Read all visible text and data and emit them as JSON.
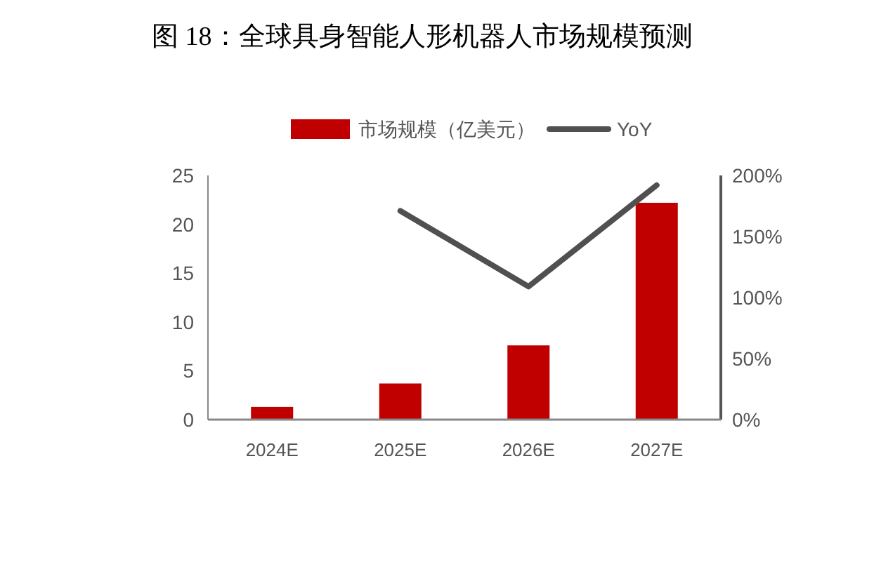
{
  "chart_data": {
    "type": "bar",
    "title": "图 18：全球具身智能人形机器人市场规模预测",
    "categories": [
      "2024E",
      "2025E",
      "2026E",
      "2027E"
    ],
    "series": [
      {
        "name": "市场规模（亿美元）",
        "color": "#c00000",
        "values": [
          1.3,
          3.7,
          7.6,
          22.2
        ]
      },
      {
        "name": "YoY",
        "type": "line",
        "axis": "y2",
        "color": "#505050",
        "values": [
          null,
          171,
          109,
          192
        ]
      }
    ],
    "ylim": [
      0,
      25
    ],
    "yticks": [
      0,
      5,
      10,
      15,
      20,
      25
    ],
    "y2lim": [
      0,
      200
    ],
    "y2ticks": [
      {
        "value": 0,
        "label": "0%"
      },
      {
        "value": 50,
        "label": "50%"
      },
      {
        "value": 100,
        "label": "100%"
      },
      {
        "value": 150,
        "label": "150%"
      },
      {
        "value": 200,
        "label": "200%"
      }
    ],
    "grid": false,
    "legend": "top",
    "marker": "none"
  }
}
